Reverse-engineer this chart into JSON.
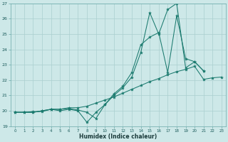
{
  "xlabel": "Humidex (Indice chaleur)",
  "x_values": [
    0,
    1,
    2,
    3,
    4,
    5,
    6,
    7,
    8,
    9,
    10,
    11,
    12,
    13,
    14,
    15,
    16,
    17,
    18,
    19,
    20,
    21,
    22,
    23
  ],
  "line1_y": [
    19.9,
    19.9,
    19.9,
    20.0,
    20.1,
    20.0,
    20.1,
    20.0,
    19.25,
    19.9,
    20.4,
    21.0,
    21.5,
    22.2,
    23.8,
    26.4,
    25.0,
    26.6,
    27.0,
    22.8,
    23.2,
    22.6,
    null,
    null
  ],
  "line2_y": [
    19.9,
    19.9,
    19.9,
    20.0,
    20.1,
    20.1,
    20.15,
    20.05,
    19.9,
    19.5,
    20.4,
    21.1,
    21.6,
    22.5,
    24.3,
    24.8,
    25.1,
    22.5,
    26.2,
    23.4,
    23.2,
    22.6,
    null,
    null
  ],
  "line3_y": [
    19.9,
    19.9,
    19.95,
    19.95,
    20.1,
    20.1,
    20.2,
    20.2,
    20.3,
    20.5,
    20.7,
    20.9,
    21.15,
    21.4,
    21.65,
    21.9,
    22.1,
    22.35,
    22.55,
    22.7,
    22.9,
    22.05,
    22.15,
    22.2
  ],
  "line_color": "#1a7a6e",
  "bg_color": "#cde8e8",
  "grid_color": "#aacfcf",
  "ylim": [
    19,
    27
  ],
  "xlim_min": -0.5,
  "xlim_max": 23.5
}
